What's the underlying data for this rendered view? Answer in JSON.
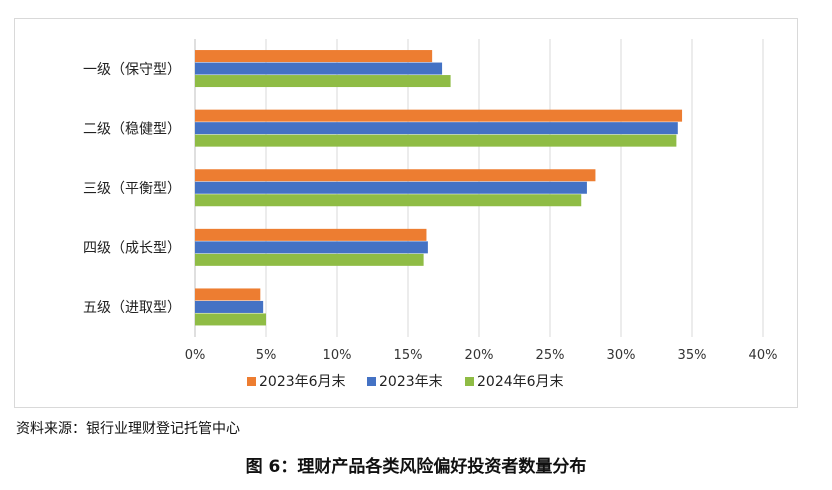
{
  "chart_data": {
    "type": "bar",
    "orientation": "horizontal",
    "categories": [
      "一级（保守型）",
      "二级（稳健型）",
      "三级（平衡型）",
      "四级（成长型）",
      "五级（进取型）"
    ],
    "series": [
      {
        "name": "2023年6月末",
        "color": "#ED7D31",
        "values": [
          16.7,
          34.3,
          28.2,
          16.3,
          4.6
        ]
      },
      {
        "name": "2023年末",
        "color": "#4472C4",
        "values": [
          17.4,
          34.0,
          27.6,
          16.4,
          4.8
        ]
      },
      {
        "name": "2024年6月末",
        "color": "#8FBC45",
        "values": [
          18.0,
          33.9,
          27.2,
          16.1,
          5.0
        ]
      }
    ],
    "x_ticks": [
      "0%",
      "5%",
      "10%",
      "15%",
      "20%",
      "25%",
      "30%",
      "35%",
      "40%"
    ],
    "xlim": [
      0,
      40
    ],
    "grid": "vertical",
    "legend_position": "bottom"
  },
  "source_note": "资料来源：银行业理财登记托管中心",
  "caption": "图 6：理财产品各类风险偏好投资者数量分布"
}
